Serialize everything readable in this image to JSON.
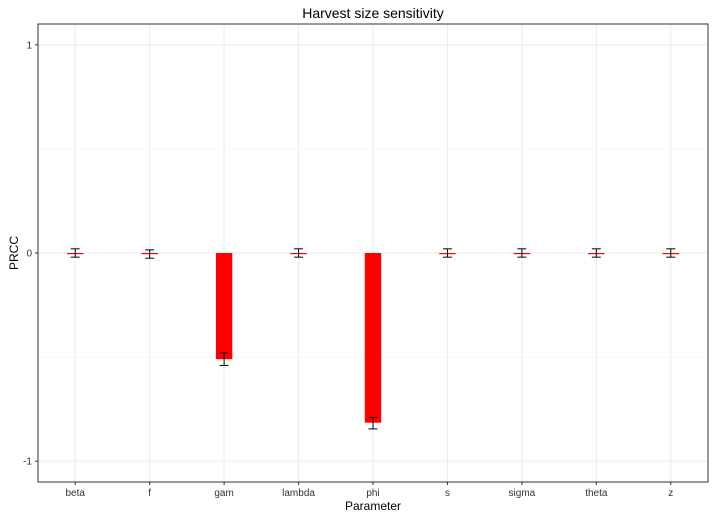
{
  "chart_data": {
    "type": "bar",
    "title": "Harvest size sensitivity",
    "xlabel": "Parameter",
    "ylabel": "PRCC",
    "ylim": [
      -1.1,
      1.1
    ],
    "yticks": [
      -1,
      0,
      1
    ],
    "grid": true,
    "categories": [
      "beta",
      "f",
      "gam",
      "lambda",
      "phi",
      "s",
      "sigma",
      "theta",
      "z"
    ],
    "values": [
      0.0,
      -0.005,
      -0.51,
      0.0,
      -0.815,
      0.0,
      0.0,
      0.0,
      0.0
    ],
    "error_low": [
      -0.02,
      -0.025,
      -0.54,
      -0.02,
      -0.845,
      -0.02,
      -0.02,
      -0.02,
      -0.02
    ],
    "error_high": [
      0.02,
      0.015,
      -0.48,
      0.02,
      -0.79,
      0.02,
      0.02,
      0.02,
      0.02
    ],
    "bar_color": "#ff0000",
    "errorbar_color": "#000000",
    "panel_border_color": "#333333",
    "grid_color": "#ebebeb"
  }
}
